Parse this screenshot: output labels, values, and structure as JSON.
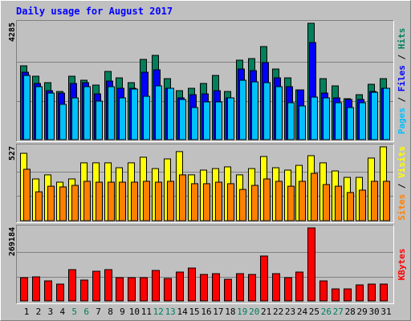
{
  "chart_data": {
    "type": "bar",
    "title": "Daily usage for August 2017",
    "categories": [
      "1",
      "2",
      "3",
      "4",
      "5",
      "6",
      "7",
      "8",
      "9",
      "10",
      "11",
      "12",
      "13",
      "14",
      "15",
      "16",
      "17",
      "18",
      "19",
      "20",
      "21",
      "22",
      "23",
      "24",
      "25",
      "26",
      "27",
      "28",
      "29",
      "30",
      "31"
    ],
    "category_colors": [
      "#000000",
      "#000000",
      "#000000",
      "#000000",
      "#007c5c",
      "#007c5c",
      "#000000",
      "#000000",
      "#000000",
      "#000000",
      "#000000",
      "#007c5c",
      "#007c5c",
      "#000000",
      "#000000",
      "#000000",
      "#000000",
      "#000000",
      "#007c5c",
      "#007c5c",
      "#000000",
      "#000000",
      "#000000",
      "#000000",
      "#000000",
      "#007c5c",
      "#007c5c",
      "#000000",
      "#000000",
      "#000000",
      "#000000"
    ],
    "legend_separator": " / ",
    "panels": [
      {
        "ylim": [
          0,
          4285
        ],
        "yticks": [
          4285
        ],
        "series": [
          {
            "name": "Hits",
            "color": "#00805c",
            "values": [
              2719,
              2335,
              2098,
              1773,
              2335,
              2187,
              2009,
              2512,
              2275,
              2098,
              2955,
              3103,
              2246,
              1803,
              1891,
              2069,
              2364,
              1773,
              2926,
              2985,
              3428,
              2600,
              2275,
              1832,
              4285,
              2246,
              1980,
              1507,
              1655,
              2039,
              2246
            ]
          },
          {
            "name": "Files",
            "color": "#0000ff",
            "values": [
              2482,
              2069,
              1803,
              1714,
              2069,
              2098,
              1684,
              2157,
              1891,
              1891,
              2482,
              2571,
              1891,
              1537,
              1655,
              1684,
              1803,
              1537,
              2600,
              2541,
              2837,
              2275,
              1950,
              1832,
              3575,
              1714,
              1537,
              1478,
              1478,
              1773,
              1891
            ]
          },
          {
            "name": "Pages",
            "color": "#00c0ff",
            "values": [
              2364,
              1950,
              1714,
              1300,
              1537,
              1950,
              1418,
              1950,
              1537,
              1862,
              1596,
              1980,
              1891,
              1478,
              1182,
              1389,
              1389,
              1537,
              2187,
              2128,
              2098,
              1950,
              1359,
              1241,
              1566,
              1537,
              1359,
              1182,
              1359,
              1743,
              1891
            ]
          }
        ]
      },
      {
        "ylim": [
          0,
          527
        ],
        "yticks": [
          527
        ],
        "series": [
          {
            "name": "Visits",
            "color": "#ffff00",
            "values": [
              481,
              298,
              327,
              275,
              298,
              413,
              413,
              413,
              378,
              413,
              453,
              372,
              441,
              493,
              327,
              361,
              372,
              384,
              327,
              372,
              458,
              378,
              361,
              395,
              464,
              413,
              355,
              309,
              309,
              447,
              527
            ]
          },
          {
            "name": "Sites",
            "color": "#ff8000",
            "values": [
              367,
              206,
              246,
              241,
              252,
              281,
              275,
              275,
              275,
              275,
              281,
              275,
              281,
              327,
              264,
              264,
              275,
              264,
              223,
              252,
              298,
              281,
              246,
              281,
              338,
              258,
              246,
              201,
              218,
              281,
              281
            ]
          }
        ]
      },
      {
        "ylim": [
          0,
          269184
        ],
        "yticks": [
          269184
        ],
        "series": [
          {
            "name": "KBytes",
            "color": "#ff0000",
            "values": [
              85782,
              88740,
              73950,
              62118,
              115362,
              76908,
              109446,
              115362,
              85782,
              85782,
              85782,
              112404,
              82824,
              106488,
              121278,
              97614,
              100572,
              79866,
              100572,
              97614,
              165648,
              100572,
              85782,
              106488,
              269184,
              73950,
              44370,
              44370,
              59160,
              62118,
              62118
            ]
          }
        ]
      }
    ]
  }
}
